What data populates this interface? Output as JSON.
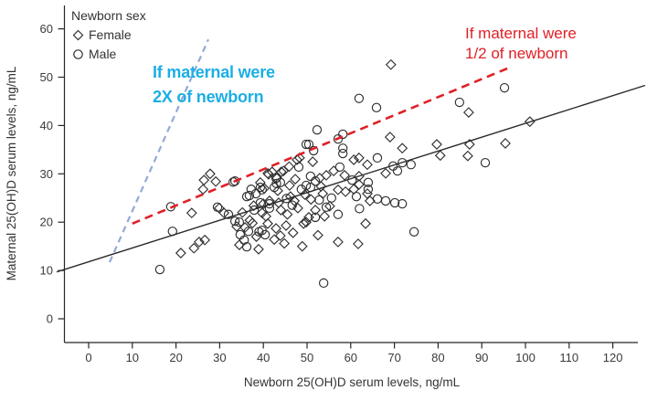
{
  "chart_data": {
    "type": "scatter",
    "xlabel": "Newborn 25(OH)D serum levels, ng/mL",
    "ylabel": "Maternal 25(OH)D serum levels, ng/mL",
    "x_ticks": [
      0,
      10,
      20,
      30,
      40,
      50,
      60,
      70,
      80,
      90,
      100,
      110,
      120
    ],
    "y_ticks": [
      0,
      10,
      20,
      30,
      40,
      50,
      60
    ],
    "xlim": [
      -8,
      128
    ],
    "ylim": [
      -5,
      64
    ],
    "grid": false,
    "legend": {
      "title": "Newborn sex",
      "position": "top-left",
      "items": [
        {
          "label": "Female",
          "marker": "diamond"
        },
        {
          "label": "Male",
          "marker": "circle"
        }
      ]
    },
    "colors": {
      "marker_outline": "#2f2f2f",
      "fit_line": "#2b2b2b",
      "half_line_red": "#e02026",
      "double_line_blue": "#93a9d6",
      "blue_annotation_text": "#1caee4",
      "red_annotation_text": "#e02026",
      "axis_text": "#3a3a3a"
    },
    "annotations": [
      {
        "name": "two-x",
        "lines": [
          "If maternal were",
          "2X of newborn"
        ],
        "color": "#1caee4"
      },
      {
        "name": "half",
        "lines": [
          "If maternal were",
          "1/2 of newborn"
        ],
        "color": "#e02026"
      }
    ],
    "reference_lines": [
      {
        "name": "fit-line",
        "style": "solid",
        "color": "#2b2b2b",
        "width": 1.4,
        "dash": "",
        "points": [
          [
            -7.3,
            9.7
          ],
          [
            127.4,
            48.3
          ]
        ]
      },
      {
        "name": "double-of-newborn-line",
        "style": "dashed",
        "color": "#93a9d6",
        "width": 2.2,
        "dash": "7,5",
        "points": [
          [
            4.8,
            11.7
          ],
          [
            27.4,
            57.8
          ]
        ]
      },
      {
        "name": "half-of-newborn-line",
        "style": "dashed",
        "color": "#e02026",
        "width": 2.6,
        "dash": "9,6",
        "points": [
          [
            10.0,
            19.7
          ],
          [
            96.9,
            52.2
          ]
        ]
      }
    ],
    "series": [
      {
        "name": "Female",
        "marker": "diamond",
        "points": [
          [
            26.4,
            28.7
          ],
          [
            27.8,
            30.0
          ],
          [
            29.1,
            28.4
          ],
          [
            26.2,
            26.8
          ],
          [
            29.9,
            22.9
          ],
          [
            31.0,
            21.9
          ],
          [
            40.0,
            23.8
          ],
          [
            41.4,
            24.4
          ],
          [
            42.0,
            30.4
          ],
          [
            43.1,
            29.1
          ],
          [
            41.0,
            30.1
          ],
          [
            44.1,
            30.4
          ],
          [
            47.7,
            32.9
          ],
          [
            48.3,
            33.3
          ],
          [
            51.3,
            32.5
          ],
          [
            44.6,
            30.6
          ],
          [
            41.2,
            29.9
          ],
          [
            39.3,
            28.2
          ],
          [
            46.0,
            27.6
          ],
          [
            46.2,
            25.3
          ],
          [
            47.1,
            24.4
          ],
          [
            43.5,
            24.0
          ],
          [
            49.8,
            20.0
          ],
          [
            41.0,
            19.7
          ],
          [
            42.9,
            18.7
          ],
          [
            45.2,
            19.3
          ],
          [
            49.2,
            19.7
          ],
          [
            50.4,
            21.0
          ],
          [
            42.5,
            16.4
          ],
          [
            43.9,
            17.2
          ],
          [
            34.5,
            15.3
          ],
          [
            38.9,
            14.4
          ],
          [
            39.7,
            21.9
          ],
          [
            51.9,
            22.5
          ],
          [
            60.7,
            32.9
          ],
          [
            61.9,
            33.3
          ],
          [
            63.8,
            31.9
          ],
          [
            56.1,
            30.6
          ],
          [
            54.4,
            29.7
          ],
          [
            52.9,
            29.1
          ],
          [
            58.6,
            29.7
          ],
          [
            61.9,
            29.5
          ],
          [
            61.9,
            27.8
          ],
          [
            60.7,
            26.8
          ],
          [
            58.8,
            26.3
          ],
          [
            57.1,
            26.7
          ],
          [
            53.6,
            25.9
          ],
          [
            63.8,
            25.9
          ],
          [
            64.4,
            24.4
          ],
          [
            68.0,
            30.1
          ],
          [
            57.1,
            15.9
          ],
          [
            61.7,
            15.5
          ],
          [
            63.4,
            19.7
          ],
          [
            23.6,
            21.9
          ],
          [
            21.1,
            13.6
          ],
          [
            24.1,
            14.6
          ],
          [
            25.3,
            15.9
          ],
          [
            26.6,
            16.3
          ],
          [
            69.2,
            52.6
          ],
          [
            87.0,
            42.7
          ],
          [
            101.0,
            40.8
          ],
          [
            87.2,
            36.1
          ],
          [
            95.4,
            36.3
          ],
          [
            86.8,
            33.7
          ],
          [
            79.7,
            36.1
          ],
          [
            71.8,
            35.3
          ],
          [
            80.5,
            33.8
          ],
          [
            69.0,
            37.6
          ],
          [
            35.8,
            18.9
          ],
          [
            37.5,
            19.8
          ],
          [
            40.6,
            21.2
          ],
          [
            44.0,
            22.5
          ],
          [
            45.5,
            21.6
          ],
          [
            47.9,
            22.9
          ],
          [
            36.9,
            20.4
          ],
          [
            33.9,
            19.1
          ],
          [
            38.4,
            17.0
          ],
          [
            44.8,
            15.6
          ],
          [
            46.8,
            17.8
          ],
          [
            52.5,
            17.3
          ],
          [
            48.9,
            15.0
          ],
          [
            54.0,
            21.2
          ],
          [
            55.2,
            23.3
          ],
          [
            49.5,
            25.7
          ],
          [
            50.9,
            24.7
          ],
          [
            53.2,
            27.4
          ],
          [
            47.3,
            28.9
          ],
          [
            45.9,
            31.5
          ],
          [
            43.3,
            26.5
          ],
          [
            40.2,
            27.0
          ],
          [
            37.8,
            23.4
          ],
          [
            35.2,
            22.0
          ]
        ]
      },
      {
        "name": "Male",
        "marker": "circle",
        "points": [
          [
            33.5,
            28.5
          ],
          [
            33.1,
            28.3
          ],
          [
            37.2,
            26.8
          ],
          [
            38.3,
            25.9
          ],
          [
            39.7,
            26.7
          ],
          [
            36.2,
            25.3
          ],
          [
            36.8,
            25.5
          ],
          [
            42.9,
            29.1
          ],
          [
            43.9,
            28.2
          ],
          [
            43.0,
            28.0
          ],
          [
            48.1,
            31.4
          ],
          [
            48.7,
            26.8
          ],
          [
            49.8,
            27.6
          ],
          [
            50.8,
            27.2
          ],
          [
            51.9,
            28.5
          ],
          [
            50.8,
            29.5
          ],
          [
            51.5,
            34.8
          ],
          [
            49.8,
            36.1
          ],
          [
            52.3,
            39.1
          ],
          [
            57.1,
            37.2
          ],
          [
            58.2,
            38.2
          ],
          [
            50.4,
            36.1
          ],
          [
            61.9,
            45.6
          ],
          [
            65.9,
            43.7
          ],
          [
            57.5,
            31.4
          ],
          [
            58.2,
            35.3
          ],
          [
            58.2,
            34.2
          ],
          [
            60.3,
            28.7
          ],
          [
            64.0,
            28.2
          ],
          [
            64.0,
            26.8
          ],
          [
            61.3,
            25.3
          ],
          [
            66.1,
            24.8
          ],
          [
            68.0,
            24.4
          ],
          [
            70.1,
            24.0
          ],
          [
            71.8,
            23.8
          ],
          [
            66.1,
            33.3
          ],
          [
            69.7,
            31.6
          ],
          [
            70.7,
            30.6
          ],
          [
            71.8,
            32.3
          ],
          [
            73.8,
            31.9
          ],
          [
            74.5,
            18.0
          ],
          [
            57.1,
            21.6
          ],
          [
            62.0,
            22.8
          ],
          [
            51.9,
            21.0
          ],
          [
            54.4,
            23.1
          ],
          [
            53.8,
            7.4
          ],
          [
            16.3,
            10.2
          ],
          [
            19.2,
            18.1
          ],
          [
            18.8,
            23.2
          ],
          [
            39.7,
            18.3
          ],
          [
            40.4,
            17.4
          ],
          [
            39.0,
            18.0
          ],
          [
            36.6,
            18.1
          ],
          [
            34.7,
            17.4
          ],
          [
            35.6,
            16.3
          ],
          [
            36.2,
            14.9
          ],
          [
            29.5,
            23.1
          ],
          [
            32.0,
            21.6
          ],
          [
            33.5,
            20.2
          ],
          [
            34.5,
            20.0
          ],
          [
            37.9,
            22.5
          ],
          [
            41.4,
            22.9
          ],
          [
            39.3,
            24.0
          ],
          [
            41.4,
            23.8
          ],
          [
            90.8,
            32.3
          ],
          [
            84.9,
            44.8
          ],
          [
            95.2,
            47.8
          ],
          [
            42.5,
            27.2
          ],
          [
            39.3,
            27.2
          ],
          [
            45.3,
            24.9
          ],
          [
            46.6,
            23.5
          ],
          [
            52.8,
            24.6
          ],
          [
            55.6,
            25.0
          ]
        ]
      }
    ]
  }
}
